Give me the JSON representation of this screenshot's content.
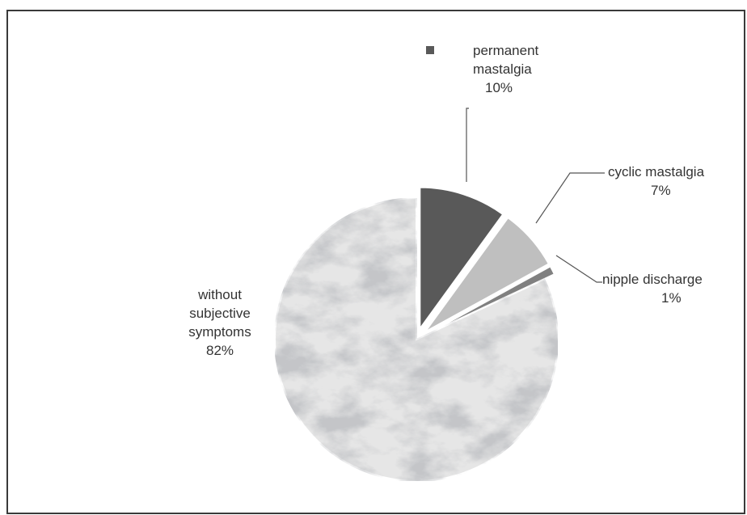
{
  "chart_data": {
    "type": "pie",
    "title": "",
    "legend": "none",
    "slices": [
      {
        "label_lines": [
          "permanent",
          "mastalgia"
        ],
        "value": 10,
        "value_label": "10%",
        "color": "#595959",
        "exploded": true,
        "legend_marker": true
      },
      {
        "label_lines": [
          "cyclic mastalgia"
        ],
        "value": 7,
        "value_label": "7%",
        "color": "#bfbfbf",
        "exploded": true,
        "legend_marker": false
      },
      {
        "label_lines": [
          "nipple discharge"
        ],
        "value": 1,
        "value_label": "1%",
        "color": "#808080",
        "exploded": true,
        "legend_marker": false
      },
      {
        "label_lines": [
          "without",
          "subjective",
          "symptoms"
        ],
        "value": 82,
        "value_label": "82%",
        "color": "#e6e6e6",
        "exploded": false,
        "legend_marker": false
      }
    ]
  }
}
